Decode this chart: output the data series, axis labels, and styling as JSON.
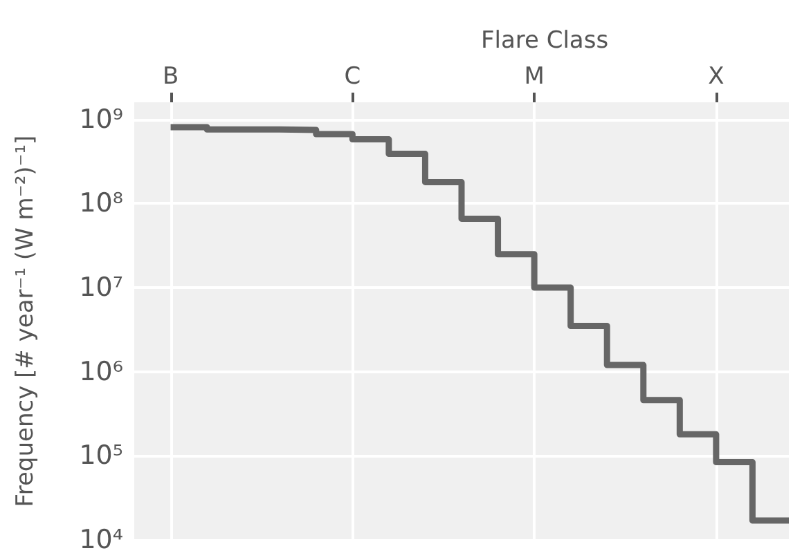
{
  "chart_data": {
    "type": "step",
    "xlabel": "Flare Class",
    "ylabel": "Frequency [# year⁻¹ (W m⁻²)⁻¹]",
    "log": "y",
    "grid": true,
    "marker": "none",
    "line_style": "solid",
    "categories": [
      null,
      "B",
      null,
      null,
      null,
      null,
      "C",
      null,
      null,
      null,
      null,
      "M",
      null,
      null,
      null,
      null,
      "X",
      null,
      null
    ],
    "ylim": [
      10000.0,
      1600000000.0
    ],
    "yticks": [
      {
        "value": 10000.0,
        "label": "10⁴"
      },
      {
        "value": 100000.0,
        "label": "10⁵"
      },
      {
        "value": 1000000.0,
        "label": "10⁶"
      },
      {
        "value": 10000000.0,
        "label": "10⁷"
      },
      {
        "value": 100000000.0,
        "label": "10⁸"
      },
      {
        "value": 1000000000.0,
        "label": "10⁹"
      }
    ],
    "series": [
      {
        "color": "#666666",
        "values": [
          null,
          810000000.0,
          760000000.0,
          760000000.0,
          750000000.0,
          670000000.0,
          580000000.0,
          390000000.0,
          180000000.0,
          66000000.0,
          25000000.0,
          10000000.0,
          3500000.0,
          1200000.0,
          460000.0,
          180000.0,
          84000.0,
          17000.0,
          17000.0
        ]
      }
    ]
  }
}
